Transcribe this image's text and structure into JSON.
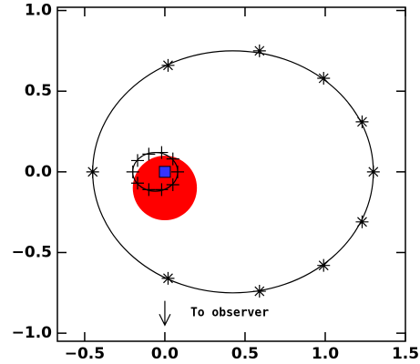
{
  "chart_data": {
    "type": "orbit",
    "xlim": [
      -0.67,
      1.5
    ],
    "ylim": [
      -1.05,
      1.02
    ],
    "xticks": [
      {
        "value": -0.5,
        "label": "−0.5"
      },
      {
        "value": 0,
        "label": "0.0"
      },
      {
        "value": 0.5,
        "label": "0.5"
      },
      {
        "value": 1,
        "label": "1.0"
      },
      {
        "value": 1.5,
        "label": "1.5"
      }
    ],
    "yticks": [
      {
        "value": -1,
        "label": "−1.0"
      },
      {
        "value": -0.5,
        "label": "−0.5"
      },
      {
        "value": 0,
        "label": "0.0"
      },
      {
        "value": 0.5,
        "label": "0.5"
      },
      {
        "value": 1,
        "label": "1.0"
      }
    ],
    "outer_orbit": {
      "cx": 0.425,
      "cy": 0,
      "rx": 0.875,
      "ry": 0.75,
      "color": "#000000",
      "x": [
        -0.45,
        0.02,
        0.59,
        0.99,
        1.23,
        1.3,
        1.23,
        0.99,
        0.59,
        0.02
      ],
      "y": [
        0,
        0.66,
        0.75,
        0.58,
        0.31,
        0,
        -0.31,
        -0.58,
        -0.74,
        -0.66
      ]
    },
    "inner_orbit": {
      "cx": -0.06,
      "cy": 0,
      "rx": 0.14,
      "ry": 0.12,
      "color": "#000000",
      "x": [
        -0.2,
        -0.17,
        -0.1,
        -0.02,
        0.05,
        0.08,
        0.05,
        -0.02,
        -0.1,
        -0.17
      ],
      "y": [
        0,
        0.07,
        0.11,
        0.12,
        0.08,
        0,
        -0.08,
        -0.11,
        -0.11,
        -0.07
      ]
    },
    "disk": {
      "cx": 0,
      "cy": -0.1,
      "r": 0.2,
      "color": "#ff0000"
    },
    "center": {
      "x": 0,
      "y": 0,
      "color": "#3333ff"
    },
    "annotation": {
      "text": "To observer",
      "x": 0,
      "y1": -0.8,
      "y2": -0.95
    }
  }
}
